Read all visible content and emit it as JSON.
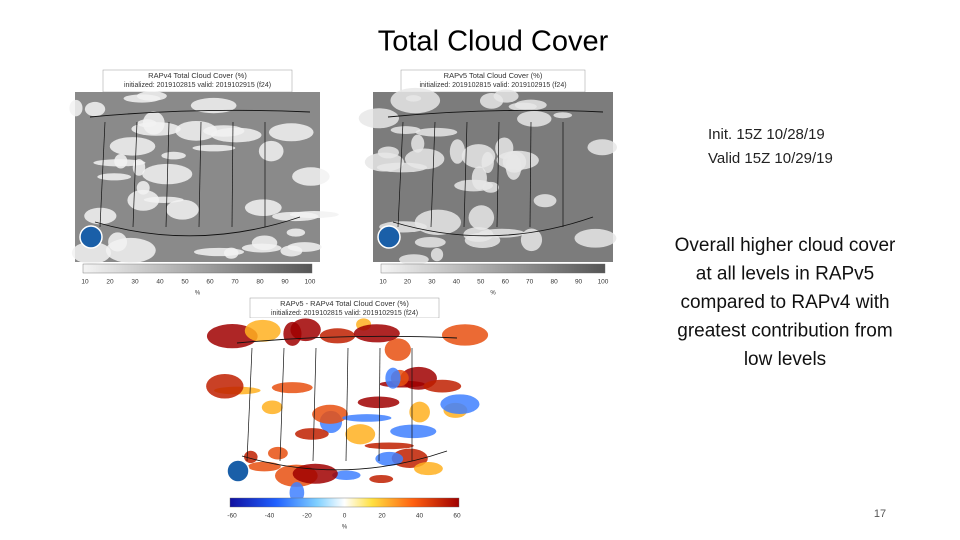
{
  "title": "Total Cloud Cover",
  "panels": [
    {
      "title": "RAPv4 Total Cloud Cover (%)",
      "subtitle": "initialized: 2019102815 valid: 2019102915 (f24)",
      "colorbar": {
        "ticks": [
          "10",
          "20",
          "30",
          "40",
          "50",
          "60",
          "70",
          "80",
          "90",
          "100"
        ],
        "unit": "%"
      }
    },
    {
      "title": "RAPv5 Total Cloud Cover (%)",
      "subtitle": "initialized: 2019102815 valid: 2019102915 (f24)",
      "colorbar": {
        "ticks": [
          "10",
          "20",
          "30",
          "40",
          "50",
          "60",
          "70",
          "80",
          "90",
          "100"
        ],
        "unit": "%"
      }
    },
    {
      "title": "RAPv5 - RAPv4 Total Cloud Cover (%)",
      "subtitle": "initialized: 2019102815 valid: 2019102915 (f24)",
      "colorbar": {
        "ticks": [
          "-60",
          "-40",
          "-20",
          "0",
          "20",
          "40",
          "60"
        ],
        "unit": "%"
      }
    }
  ],
  "info": [
    "Init. 15Z 10/28/19",
    "Valid 15Z 10/29/19"
  ],
  "summary": [
    "Overall higher cloud cover",
    "at all levels in RAPv5",
    "compared to RAPv4 with",
    "greatest contribution from",
    "low levels"
  ],
  "page_number": "17"
}
